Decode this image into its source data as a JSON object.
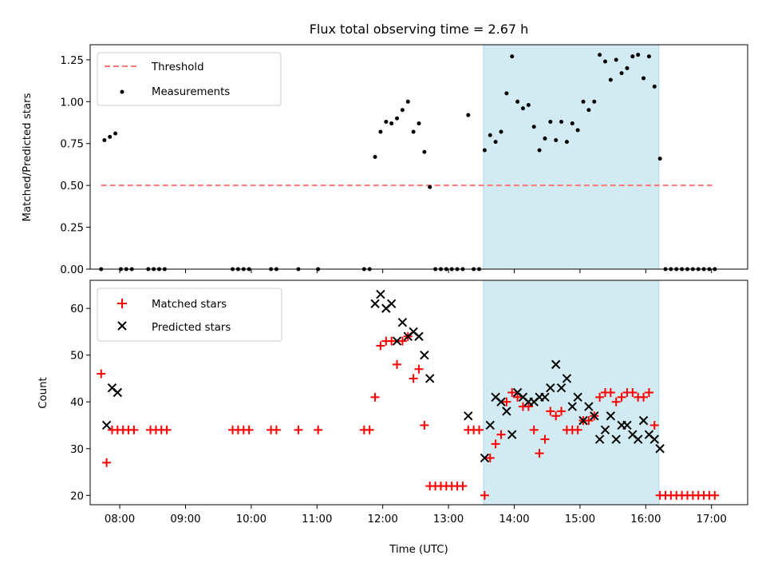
{
  "chart_data": {
    "title": "Flux total observing time = 2.67 h",
    "xlabel": "Time (UTC)",
    "x_ticks": [
      "08:00",
      "09:00",
      "10:00",
      "11:00",
      "12:00",
      "13:00",
      "14:00",
      "15:00",
      "16:00",
      "17:00"
    ],
    "xlim": [
      "07:33",
      "17:33"
    ],
    "shaded_region": {
      "start": "13:32",
      "end": "16:12",
      "color": "#add8e6"
    },
    "panels": [
      {
        "type": "scatter",
        "ylabel": "Matched/Predicted stars",
        "ylim": [
          0,
          1.34
        ],
        "y_ticks": [
          "0.00",
          "0.25",
          "0.50",
          "0.75",
          "1.00",
          "1.25"
        ],
        "legend": {
          "position": "top-left",
          "entries": [
            "Threshold",
            "Measurements"
          ]
        },
        "threshold": {
          "name": "Threshold",
          "value": 0.5,
          "from": "07:43",
          "to": "17:03",
          "color": "#ff7777"
        },
        "series": [
          {
            "name": "Measurements",
            "color": "#000000",
            "marker": "dot",
            "points": [
              [
                "07:43",
                0
              ],
              [
                "07:46",
                0.77
              ],
              [
                "07:51",
                0.79
              ],
              [
                "07:56",
                0.81
              ],
              [
                "08:01",
                0
              ],
              [
                "08:06",
                0
              ],
              [
                "08:11",
                0
              ],
              [
                "08:26",
                0
              ],
              [
                "08:31",
                0
              ],
              [
                "08:36",
                0
              ],
              [
                "08:41",
                0
              ],
              [
                "09:43",
                0
              ],
              [
                "09:48",
                0
              ],
              [
                "09:53",
                0
              ],
              [
                "09:58",
                0
              ],
              [
                "10:18",
                0
              ],
              [
                "10:23",
                0
              ],
              [
                "10:43",
                0
              ],
              [
                "11:01",
                0
              ],
              [
                "11:43",
                0
              ],
              [
                "11:48",
                0
              ],
              [
                "11:53",
                0.67
              ],
              [
                "11:58",
                0.82
              ],
              [
                "12:03",
                0.88
              ],
              [
                "12:08",
                0.87
              ],
              [
                "12:13",
                0.9
              ],
              [
                "12:18",
                0.95
              ],
              [
                "12:23",
                1.0
              ],
              [
                "12:28",
                0.82
              ],
              [
                "12:33",
                0.87
              ],
              [
                "12:38",
                0.7
              ],
              [
                "12:43",
                0.49
              ],
              [
                "12:48",
                0
              ],
              [
                "12:53",
                0
              ],
              [
                "12:58",
                0
              ],
              [
                "13:03",
                0
              ],
              [
                "13:08",
                0
              ],
              [
                "13:13",
                0
              ],
              [
                "13:18",
                0.92
              ],
              [
                "13:23",
                0
              ],
              [
                "13:28",
                0
              ],
              [
                "13:33",
                0.71
              ],
              [
                "13:38",
                0.8
              ],
              [
                "13:43",
                0.76
              ],
              [
                "13:48",
                0.82
              ],
              [
                "13:53",
                1.05
              ],
              [
                "13:58",
                1.27
              ],
              [
                "14:03",
                1.0
              ],
              [
                "14:08",
                0.96
              ],
              [
                "14:13",
                0.98
              ],
              [
                "14:18",
                0.85
              ],
              [
                "14:23",
                0.71
              ],
              [
                "14:28",
                0.78
              ],
              [
                "14:33",
                0.88
              ],
              [
                "14:38",
                0.77
              ],
              [
                "14:43",
                0.88
              ],
              [
                "14:48",
                0.76
              ],
              [
                "14:53",
                0.87
              ],
              [
                "14:58",
                0.83
              ],
              [
                "15:03",
                1.0
              ],
              [
                "15:08",
                0.95
              ],
              [
                "15:13",
                1.0
              ],
              [
                "15:18",
                1.28
              ],
              [
                "15:23",
                1.24
              ],
              [
                "15:28",
                1.13
              ],
              [
                "15:33",
                1.25
              ],
              [
                "15:38",
                1.17
              ],
              [
                "15:43",
                1.2
              ],
              [
                "15:48",
                1.27
              ],
              [
                "15:53",
                1.28
              ],
              [
                "15:58",
                1.14
              ],
              [
                "16:03",
                1.27
              ],
              [
                "16:08",
                1.09
              ],
              [
                "16:13",
                0.66
              ],
              [
                "16:18",
                0
              ],
              [
                "16:23",
                0
              ],
              [
                "16:28",
                0
              ],
              [
                "16:33",
                0
              ],
              [
                "16:38",
                0
              ],
              [
                "16:43",
                0
              ],
              [
                "16:48",
                0
              ],
              [
                "16:53",
                0
              ],
              [
                "16:58",
                0
              ],
              [
                "17:03",
                0
              ]
            ]
          }
        ]
      },
      {
        "type": "scatter",
        "ylabel": "Count",
        "ylim": [
          18,
          66
        ],
        "y_ticks": [
          "20",
          "30",
          "40",
          "50",
          "60"
        ],
        "legend": {
          "position": "top-left",
          "entries": [
            "Matched stars",
            "Predicted stars"
          ]
        },
        "series": [
          {
            "name": "Matched stars",
            "color": "#ff0000",
            "marker": "plus",
            "points": [
              [
                "07:43",
                46
              ],
              [
                "07:48",
                27
              ],
              [
                "07:53",
                34
              ],
              [
                "07:58",
                34
              ],
              [
                "08:03",
                34
              ],
              [
                "08:08",
                34
              ],
              [
                "08:13",
                34
              ],
              [
                "08:28",
                34
              ],
              [
                "08:33",
                34
              ],
              [
                "08:38",
                34
              ],
              [
                "08:43",
                34
              ],
              [
                "09:43",
                34
              ],
              [
                "09:48",
                34
              ],
              [
                "09:53",
                34
              ],
              [
                "09:58",
                34
              ],
              [
                "10:18",
                34
              ],
              [
                "10:23",
                34
              ],
              [
                "10:43",
                34
              ],
              [
                "11:01",
                34
              ],
              [
                "11:43",
                34
              ],
              [
                "11:48",
                34
              ],
              [
                "11:53",
                41
              ],
              [
                "11:58",
                52
              ],
              [
                "12:03",
                53
              ],
              [
                "12:08",
                53
              ],
              [
                "12:13",
                48
              ],
              [
                "12:18",
                53
              ],
              [
                "12:23",
                54
              ],
              [
                "12:28",
                45
              ],
              [
                "12:33",
                47
              ],
              [
                "12:38",
                35
              ],
              [
                "12:43",
                22
              ],
              [
                "12:48",
                22
              ],
              [
                "12:53",
                22
              ],
              [
                "12:58",
                22
              ],
              [
                "13:03",
                22
              ],
              [
                "13:08",
                22
              ],
              [
                "13:13",
                22
              ],
              [
                "13:18",
                34
              ],
              [
                "13:23",
                34
              ],
              [
                "13:28",
                34
              ],
              [
                "13:33",
                20
              ],
              [
                "13:38",
                28
              ],
              [
                "13:43",
                31
              ],
              [
                "13:48",
                33
              ],
              [
                "13:53",
                40
              ],
              [
                "13:58",
                42
              ],
              [
                "14:03",
                41
              ],
              [
                "14:08",
                39
              ],
              [
                "14:13",
                39
              ],
              [
                "14:18",
                34
              ],
              [
                "14:23",
                29
              ],
              [
                "14:28",
                32
              ],
              [
                "14:33",
                38
              ],
              [
                "14:38",
                37
              ],
              [
                "14:43",
                38
              ],
              [
                "14:48",
                34
              ],
              [
                "14:53",
                34
              ],
              [
                "14:58",
                34
              ],
              [
                "15:03",
                36
              ],
              [
                "15:08",
                36
              ],
              [
                "15:13",
                37
              ],
              [
                "15:18",
                41
              ],
              [
                "15:23",
                42
              ],
              [
                "15:28",
                42
              ],
              [
                "15:33",
                40
              ],
              [
                "15:38",
                41
              ],
              [
                "15:43",
                42
              ],
              [
                "15:48",
                42
              ],
              [
                "15:53",
                41
              ],
              [
                "15:58",
                41
              ],
              [
                "16:03",
                42
              ],
              [
                "16:08",
                35
              ],
              [
                "16:13",
                20
              ],
              [
                "16:18",
                20
              ],
              [
                "16:23",
                20
              ],
              [
                "16:28",
                20
              ],
              [
                "16:33",
                20
              ],
              [
                "16:38",
                20
              ],
              [
                "16:43",
                20
              ],
              [
                "16:48",
                20
              ],
              [
                "16:53",
                20
              ],
              [
                "16:58",
                20
              ],
              [
                "17:03",
                20
              ]
            ]
          },
          {
            "name": "Predicted stars",
            "color": "#000000",
            "marker": "x",
            "points": [
              [
                "07:48",
                35
              ],
              [
                "07:53",
                43
              ],
              [
                "07:58",
                42
              ],
              [
                "11:53",
                61
              ],
              [
                "11:58",
                63
              ],
              [
                "12:03",
                60
              ],
              [
                "12:08",
                61
              ],
              [
                "12:13",
                53
              ],
              [
                "12:18",
                57
              ],
              [
                "12:23",
                54
              ],
              [
                "12:28",
                55
              ],
              [
                "12:33",
                54
              ],
              [
                "12:38",
                50
              ],
              [
                "12:43",
                45
              ],
              [
                "13:18",
                37
              ],
              [
                "13:33",
                28
              ],
              [
                "13:38",
                35
              ],
              [
                "13:43",
                41
              ],
              [
                "13:48",
                40
              ],
              [
                "13:53",
                38
              ],
              [
                "13:58",
                33
              ],
              [
                "14:03",
                42
              ],
              [
                "14:08",
                41
              ],
              [
                "14:13",
                40
              ],
              [
                "14:18",
                40
              ],
              [
                "14:23",
                41
              ],
              [
                "14:28",
                41
              ],
              [
                "14:33",
                43
              ],
              [
                "14:38",
                48
              ],
              [
                "14:43",
                43
              ],
              [
                "14:48",
                45
              ],
              [
                "14:53",
                39
              ],
              [
                "14:58",
                41
              ],
              [
                "15:03",
                36
              ],
              [
                "15:08",
                39
              ],
              [
                "15:13",
                37
              ],
              [
                "15:18",
                32
              ],
              [
                "15:23",
                34
              ],
              [
                "15:28",
                37
              ],
              [
                "15:33",
                32
              ],
              [
                "15:38",
                35
              ],
              [
                "15:43",
                35
              ],
              [
                "15:48",
                33
              ],
              [
                "15:53",
                32
              ],
              [
                "15:58",
                36
              ],
              [
                "16:03",
                33
              ],
              [
                "16:08",
                32
              ],
              [
                "16:13",
                30
              ]
            ]
          }
        ]
      }
    ]
  }
}
